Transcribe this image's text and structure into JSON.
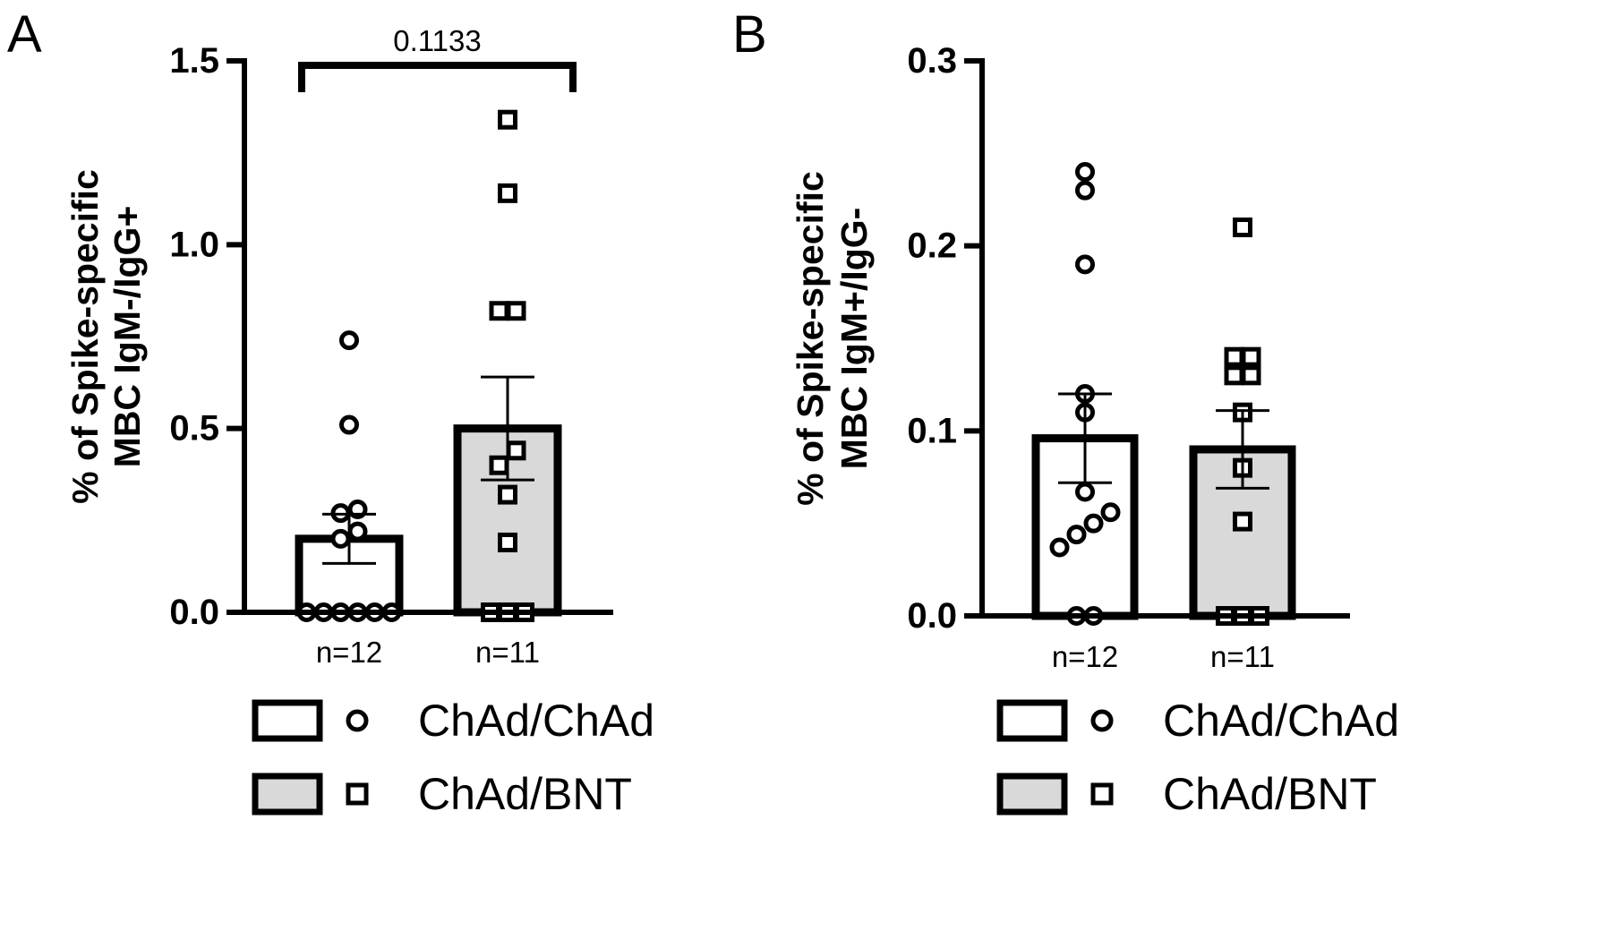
{
  "chart_data": [
    {
      "type": "bar",
      "panel": "A",
      "ylabel": [
        "% of Spike-specific",
        "MBC IgM-/IgG+"
      ],
      "ylim": [
        0,
        1.5
      ],
      "yticks": [
        "0.0",
        "0.5",
        "1.0",
        "1.5"
      ],
      "significance": "0.1133",
      "series": [
        {
          "name": "ChAd/ChAd",
          "n_label": "n=12",
          "marker": "circle",
          "fill": "#ffffff",
          "mean": 0.2,
          "sem": 0.067,
          "points": [
            0,
            0,
            0,
            0,
            0,
            0,
            0.2,
            0.22,
            0.27,
            0.28,
            0.51,
            0.74
          ]
        },
        {
          "name": "ChAd/BNT",
          "n_label": "n=11",
          "marker": "square",
          "fill": "#d9d9d9",
          "mean": 0.5,
          "sem": 0.14,
          "points": [
            0,
            0,
            0,
            0.19,
            0.32,
            0.4,
            0.44,
            0.82,
            0.82,
            1.14,
            1.34
          ]
        }
      ]
    },
    {
      "type": "bar",
      "panel": "B",
      "ylabel": [
        "% of Spike-specific",
        "MBC IgM+/IgG-"
      ],
      "ylim": [
        0,
        0.3
      ],
      "yticks": [
        "0.0",
        "0.1",
        "0.2",
        "0.3"
      ],
      "series": [
        {
          "name": "ChAd/ChAd",
          "n_label": "n=12",
          "marker": "circle",
          "fill": "#ffffff",
          "mean": 0.096,
          "sem": 0.024,
          "points": [
            0,
            0,
            0.037,
            0.044,
            0.05,
            0.056,
            0.067,
            0.11,
            0.12,
            0.19,
            0.23,
            0.24
          ]
        },
        {
          "name": "ChAd/BNT",
          "n_label": "n=11",
          "marker": "square",
          "fill": "#d9d9d9",
          "mean": 0.09,
          "sem": 0.021,
          "points": [
            0,
            0,
            0,
            0.051,
            0.08,
            0.11,
            0.13,
            0.13,
            0.14,
            0.14,
            0.21
          ]
        }
      ]
    }
  ]
}
